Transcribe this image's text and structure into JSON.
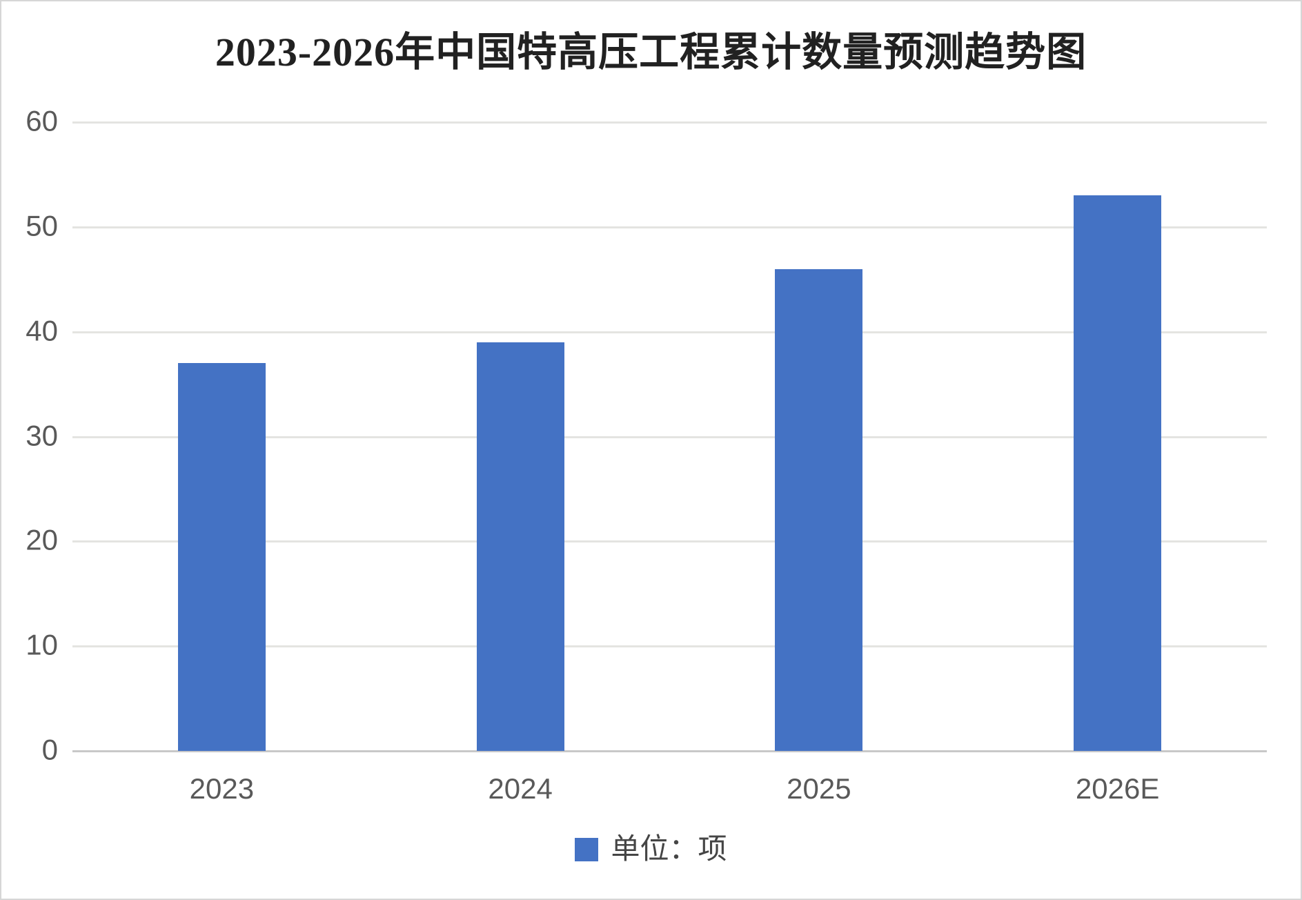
{
  "title": "2023-2026年中国特高压工程累计数量预测趋势图",
  "legend": {
    "label": "单位：项",
    "swatch_color": "#4472C4"
  },
  "colors": {
    "bar": "#4472C4",
    "gridline": "#e4e4e1",
    "axis_line": "#c8c8c8",
    "tick_label": "#595959",
    "title": "#212121",
    "background": "#ffffff",
    "border": "#d6d6d6"
  },
  "chart_data": {
    "type": "bar",
    "title": "2023-2026年中国特高压工程累计数量预测趋势图",
    "categories": [
      "2023",
      "2024",
      "2025",
      "2026E"
    ],
    "values": [
      37,
      39,
      46,
      53
    ],
    "series": [
      {
        "name": "单位：项",
        "values": [
          37,
          39,
          46,
          53
        ]
      }
    ],
    "xlabel": "",
    "ylabel": "",
    "ylim": [
      0,
      60
    ],
    "yticks": [
      0,
      10,
      20,
      30,
      40,
      50,
      60
    ],
    "grid": true,
    "legend_entries": [
      "单位：项"
    ],
    "legend_position": "bottom-center",
    "bar_color": "#4472C4"
  }
}
